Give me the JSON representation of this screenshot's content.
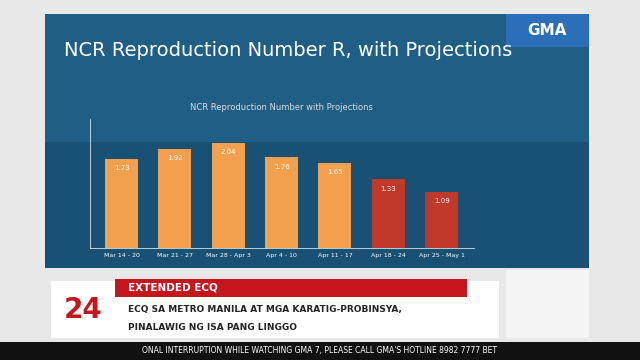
{
  "chart_data": {
    "type": "bar",
    "title": "NCR Reproduction Number R, with Projections",
    "subtitle": "NCR Reproduction Number with Projections",
    "categories": [
      "Mar 14 - 20",
      "Mar 21 - 27",
      "Mar 28 - Apr 3",
      "Apr 4 - 10",
      "Apr 11 - 17",
      "Apr 18 - 24",
      "Apr 25 - May 1"
    ],
    "values": [
      1.73,
      1.92,
      2.04,
      1.76,
      1.65,
      1.33,
      1.09
    ],
    "colors": [
      "#f2a04e",
      "#f2a04e",
      "#f2a04e",
      "#f2a04e",
      "#f2a04e",
      "#c0392b",
      "#c0392b"
    ],
    "ylim": [
      0,
      2.5
    ],
    "yticks": [],
    "data_labels": true,
    "tick_labels": "x",
    "grid": false
  },
  "broadcast": {
    "logo": "GMA",
    "show": "24",
    "tag": "EXTENDED ECQ",
    "headline": [
      "ECQ SA METRO MANILA AT MGA KARATIG-PROBINSYA,",
      "PINALAWIG NG ISA PANG LINGGO"
    ],
    "ticker": "ONAL INTERRUPTION WHILE WATCHING GMA 7, PLEASE CALL GMA'S HOTLINE 8982 7777 BET"
  }
}
